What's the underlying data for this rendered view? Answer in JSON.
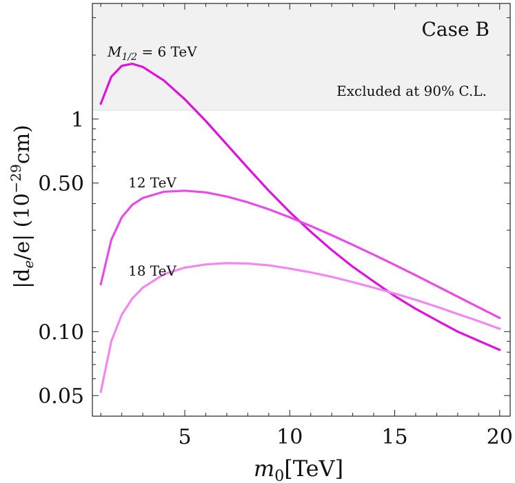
{
  "chart_data": {
    "type": "line",
    "title": "",
    "xlabel_base": "m",
    "xlabel_sub": "0",
    "xlabel_unit": "[TeV]",
    "ylabel_prefix": "|d",
    "ylabel_sub": "e",
    "ylabel_mid": "/e| (10",
    "ylabel_sup": "−29",
    "ylabel_suffix": "cm)",
    "xlim": [
      0.6,
      20.5
    ],
    "ylim": [
      0.04,
      3.5
    ],
    "y_scale": "log",
    "grid": false,
    "x_ticks": [
      5,
      10,
      15,
      20
    ],
    "x_tick_labels": [
      "5",
      "10",
      "15",
      "20"
    ],
    "y_ticks": [
      0.05,
      0.1,
      0.5,
      1
    ],
    "y_tick_labels": [
      "0.05",
      "0.10",
      "0.50",
      "1"
    ],
    "excluded_region": {
      "y_min": 1.1,
      "label": "Excluded at 90% C.L.",
      "color": "#f1f1f1"
    },
    "case_label": "Case B",
    "series": [
      {
        "label_base": "M",
        "label_sub": "1/2",
        "label_rest": " = 6 TeV",
        "color": "#e010e0",
        "x": [
          1,
          1.5,
          2,
          2.5,
          3,
          4,
          5,
          6,
          7,
          8,
          9,
          10,
          11,
          12,
          13,
          14,
          15,
          16,
          17,
          18,
          19,
          20
        ],
        "y": [
          1.18,
          1.58,
          1.78,
          1.82,
          1.76,
          1.52,
          1.24,
          0.98,
          0.76,
          0.59,
          0.46,
          0.365,
          0.295,
          0.242,
          0.202,
          0.172,
          0.147,
          0.128,
          0.113,
          0.1,
          0.0905,
          0.082
        ]
      },
      {
        "label_base": "12 TeV",
        "label_sub": "",
        "label_rest": "",
        "color": "#e84ce8",
        "x": [
          1,
          1.5,
          2,
          2.5,
          3,
          4,
          5,
          6,
          7,
          8,
          9,
          10,
          11,
          12,
          13,
          14,
          15,
          16,
          17,
          18,
          19,
          20
        ],
        "y": [
          0.167,
          0.27,
          0.345,
          0.395,
          0.425,
          0.455,
          0.46,
          0.452,
          0.432,
          0.406,
          0.376,
          0.345,
          0.314,
          0.284,
          0.256,
          0.23,
          0.206,
          0.184,
          0.164,
          0.146,
          0.13,
          0.116
        ]
      },
      {
        "label_base": "18 TeV",
        "label_sub": "",
        "label_rest": "",
        "color": "#f287f2",
        "x": [
          1,
          1.5,
          2,
          2.5,
          3,
          4,
          5,
          6,
          7,
          8,
          9,
          10,
          11,
          12,
          13,
          14,
          15,
          16,
          17,
          18,
          19,
          20
        ],
        "y": [
          0.052,
          0.09,
          0.12,
          0.143,
          0.161,
          0.186,
          0.2,
          0.207,
          0.21,
          0.209,
          0.205,
          0.198,
          0.19,
          0.181,
          0.171,
          0.161,
          0.151,
          0.141,
          0.131,
          0.121,
          0.112,
          0.103
        ]
      }
    ]
  }
}
